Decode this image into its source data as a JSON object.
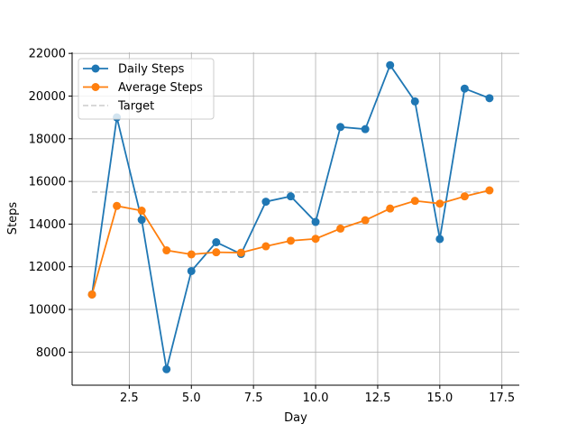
{
  "chart_data": {
    "type": "line",
    "xlabel": "Day",
    "ylabel": "Steps",
    "xlim": [
      0.2,
      18.2
    ],
    "ylim": [
      6450,
      22050
    ],
    "xticks": [
      2.5,
      5.0,
      7.5,
      10.0,
      12.5,
      15.0,
      17.5
    ],
    "xtick_labels": [
      "2.5",
      "5.0",
      "7.5",
      "10.0",
      "12.5",
      "15.0",
      "17.5"
    ],
    "yticks": [
      8000,
      10000,
      12000,
      14000,
      16000,
      18000,
      20000,
      22000
    ],
    "ytick_labels": [
      "8000",
      "10000",
      "12000",
      "14000",
      "16000",
      "18000",
      "20000",
      "22000"
    ],
    "grid": true,
    "legend_position": "top-left",
    "x": [
      1,
      2,
      3,
      4,
      5,
      6,
      7,
      8,
      9,
      10,
      11,
      12,
      13,
      14,
      15,
      16,
      17
    ],
    "series": [
      {
        "name": "Daily Steps",
        "color": "#1f77b4",
        "marker": "circle",
        "values": [
          10700,
          19000,
          14200,
          7200,
          11800,
          13150,
          12600,
          15050,
          15300,
          14100,
          18550,
          18450,
          21450,
          19750,
          13300,
          20350,
          19900
        ]
      },
      {
        "name": "Average Steps",
        "color": "#ff7f0e",
        "marker": "circle",
        "values": [
          10700,
          14850,
          14630,
          12770,
          12580,
          12680,
          12660,
          12960,
          13220,
          13310,
          13790,
          14180,
          14730,
          15090,
          14960,
          15300,
          15580
        ]
      }
    ],
    "reference_lines": [
      {
        "name": "Target",
        "color": "#cccccc",
        "style": "dashed",
        "value": 15500,
        "x_range": [
          1,
          17
        ]
      }
    ]
  }
}
